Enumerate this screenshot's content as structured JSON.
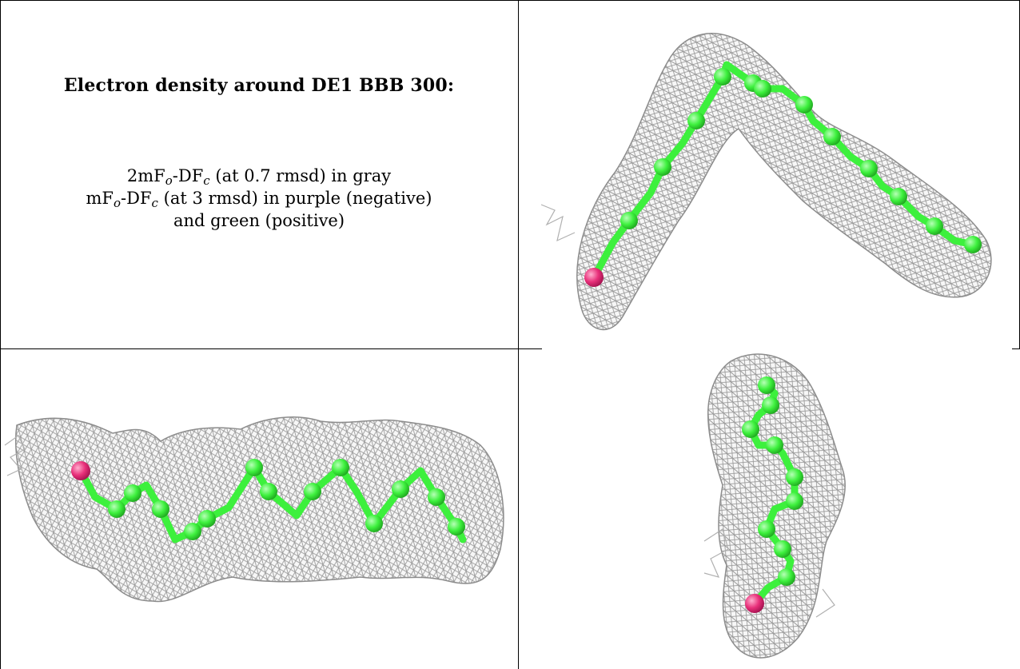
{
  "caption": {
    "title": "Electron density around DE1 BBB 300:",
    "line1_prefix": "2mF",
    "line1_sub_o": "o",
    "line1_mid": "-DF",
    "line1_sub_c": "c",
    "line1_suffix": " (at 0.7 rmsd) in gray",
    "line2_prefix": "mF",
    "line2_sub_o": "o",
    "line2_mid": "-DF",
    "line2_sub_c": "c",
    "line2_suffix": " (at 3 rmsd) in purple (negative)",
    "line3": "and green (positive)"
  },
  "colors": {
    "mesh": "#a9a9a9",
    "carbon": "#3df03d",
    "oxygen": "#e8307a"
  },
  "panels": [
    {
      "id": "top-right",
      "view": "V-shaped ligand view"
    },
    {
      "id": "bottom-left",
      "view": "horizontal zigzag view"
    },
    {
      "id": "bottom-right",
      "view": "end-on vertical view"
    }
  ]
}
